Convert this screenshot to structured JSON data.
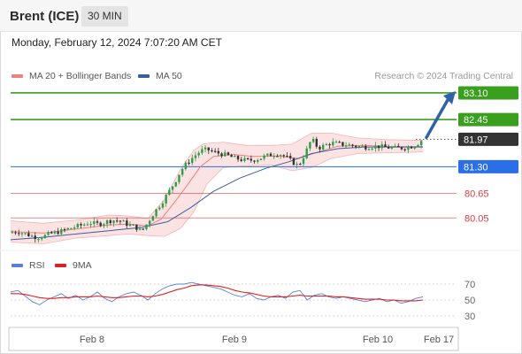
{
  "header": {
    "instrument": "Brent (ICE)",
    "timeframe": "30 MIN"
  },
  "datetime": "Monday, February 12, 2024 7:07:20 AM CET",
  "legend": {
    "bb": {
      "label": "MA 20 + Bollinger Bands",
      "color": "#f08080"
    },
    "ma50": {
      "label": "MA 50",
      "color": "#3a5f9a"
    },
    "rsi": {
      "label": "RSI",
      "color": "#5a7fd6"
    },
    "rsi_ma": {
      "label": "9MA",
      "color": "#e02020"
    }
  },
  "credit": "Research © 2024 Trading Central",
  "colors": {
    "up": "#2c9e4a",
    "down": "#333333",
    "bb_fill": "#fbe3e3",
    "forecast_arrow": "#2f62a8"
  },
  "chart_data": [
    {
      "type": "candlestick",
      "title": "",
      "x_ticks": [
        "Feb 8",
        "Feb 9",
        "Feb 10",
        "Feb 17"
      ],
      "ylim": [
        79.15,
        83.25
      ],
      "last_price": 81.97,
      "levels": [
        {
          "label": "83.10",
          "value": 83.1,
          "role": "resistance",
          "color": "#3a9e1e",
          "style": "tag"
        },
        {
          "label": "82.45",
          "value": 82.45,
          "role": "resistance",
          "color": "#3a9e1e",
          "style": "tag"
        },
        {
          "label": "81.97",
          "value": 81.97,
          "role": "last price",
          "color": "#333333",
          "style": "tag"
        },
        {
          "label": "81.30",
          "value": 81.3,
          "role": "pivot",
          "color": "#2a6ee8",
          "style": "tag"
        },
        {
          "label": "80.65",
          "value": 80.65,
          "role": "support",
          "color": "#e03c3c",
          "style": "text"
        },
        {
          "label": "80.05",
          "value": 80.05,
          "role": "support",
          "color": "#e03c3c",
          "style": "text"
        }
      ],
      "forecast": {
        "from": 81.97,
        "to": 83.1,
        "direction": "up"
      },
      "close_path": [
        [
          0,
          79.7
        ],
        [
          4,
          79.72
        ],
        [
          8,
          79.68
        ],
        [
          12,
          79.62
        ],
        [
          16,
          79.58
        ],
        [
          20,
          79.6
        ],
        [
          24,
          79.66
        ],
        [
          28,
          79.7
        ],
        [
          32,
          79.74
        ],
        [
          36,
          79.8
        ],
        [
          40,
          79.84
        ],
        [
          44,
          79.88
        ],
        [
          48,
          79.94
        ],
        [
          52,
          79.9
        ],
        [
          56,
          79.92
        ],
        [
          60,
          79.98
        ],
        [
          64,
          80.0
        ],
        [
          68,
          79.96
        ],
        [
          72,
          79.88
        ],
        [
          76,
          79.84
        ],
        [
          80,
          79.72
        ],
        [
          84,
          79.95
        ],
        [
          88,
          80.2
        ],
        [
          92,
          80.4
        ],
        [
          96,
          80.65
        ],
        [
          100,
          80.9
        ],
        [
          104,
          81.2
        ],
        [
          108,
          81.4
        ],
        [
          112,
          81.55
        ],
        [
          116,
          81.68
        ],
        [
          120,
          81.72
        ],
        [
          124,
          81.66
        ],
        [
          128,
          81.62
        ],
        [
          132,
          81.58
        ],
        [
          136,
          81.52
        ],
        [
          140,
          81.48
        ],
        [
          144,
          81.45
        ],
        [
          148,
          81.46
        ],
        [
          152,
          81.5
        ],
        [
          156,
          81.56
        ],
        [
          160,
          81.6
        ],
        [
          164,
          81.62
        ],
        [
          168,
          81.55
        ],
        [
          172,
          81.42
        ],
        [
          176,
          81.32
        ],
        [
          180,
          81.62
        ],
        [
          184,
          81.98
        ],
        [
          188,
          81.75
        ],
        [
          192,
          81.82
        ],
        [
          196,
          81.88
        ],
        [
          200,
          81.86
        ],
        [
          204,
          81.84
        ],
        [
          208,
          81.82
        ],
        [
          212,
          81.8
        ],
        [
          216,
          81.78
        ],
        [
          220,
          81.79
        ],
        [
          224,
          81.8
        ],
        [
          228,
          81.78
        ],
        [
          232,
          81.76
        ],
        [
          236,
          81.75
        ],
        [
          240,
          81.76
        ],
        [
          244,
          81.78
        ],
        [
          248,
          81.84
        ],
        [
          252,
          81.97
        ]
      ],
      "ma20": [
        [
          0,
          79.72
        ],
        [
          20,
          79.68
        ],
        [
          40,
          79.78
        ],
        [
          60,
          79.88
        ],
        [
          72,
          79.9
        ],
        [
          84,
          79.86
        ],
        [
          92,
          80.02
        ],
        [
          100,
          80.42
        ],
        [
          108,
          80.85
        ],
        [
          116,
          81.3
        ],
        [
          124,
          81.55
        ],
        [
          136,
          81.6
        ],
        [
          148,
          81.55
        ],
        [
          164,
          81.56
        ],
        [
          176,
          81.5
        ],
        [
          188,
          81.66
        ],
        [
          200,
          81.8
        ],
        [
          216,
          81.82
        ],
        [
          232,
          81.79
        ],
        [
          252,
          81.79
        ]
      ],
      "ma50": [
        [
          0,
          79.52
        ],
        [
          20,
          79.58
        ],
        [
          40,
          79.66
        ],
        [
          60,
          79.74
        ],
        [
          80,
          79.82
        ],
        [
          96,
          79.96
        ],
        [
          110,
          80.3
        ],
        [
          124,
          80.7
        ],
        [
          140,
          81.02
        ],
        [
          156,
          81.26
        ],
        [
          170,
          81.42
        ],
        [
          184,
          81.62
        ],
        [
          200,
          81.74
        ],
        [
          216,
          81.78
        ],
        [
          232,
          81.78
        ],
        [
          252,
          81.78
        ]
      ],
      "bb_upper": [
        [
          0,
          79.98
        ],
        [
          20,
          79.92
        ],
        [
          40,
          80.0
        ],
        [
          60,
          80.12
        ],
        [
          72,
          80.1
        ],
        [
          84,
          80.04
        ],
        [
          94,
          80.5
        ],
        [
          104,
          81.25
        ],
        [
          112,
          81.7
        ],
        [
          118,
          81.86
        ],
        [
          130,
          81.9
        ],
        [
          144,
          81.82
        ],
        [
          160,
          81.82
        ],
        [
          172,
          81.85
        ],
        [
          184,
          82.12
        ],
        [
          196,
          82.12
        ],
        [
          212,
          82.0
        ],
        [
          230,
          81.96
        ],
        [
          252,
          81.94
        ]
      ],
      "bb_lower": [
        [
          0,
          79.46
        ],
        [
          20,
          79.42
        ],
        [
          40,
          79.56
        ],
        [
          60,
          79.62
        ],
        [
          72,
          79.66
        ],
        [
          84,
          79.62
        ],
        [
          94,
          79.6
        ],
        [
          104,
          79.8
        ],
        [
          112,
          80.2
        ],
        [
          120,
          80.88
        ],
        [
          130,
          81.28
        ],
        [
          144,
          81.32
        ],
        [
          160,
          81.34
        ],
        [
          172,
          81.2
        ],
        [
          184,
          81.28
        ],
        [
          196,
          81.5
        ],
        [
          212,
          81.62
        ],
        [
          230,
          81.64
        ],
        [
          252,
          81.66
        ]
      ]
    },
    {
      "type": "line",
      "title": "RSI",
      "ylim": [
        20,
        80
      ],
      "y_ticks": [
        70,
        50,
        30
      ],
      "series": [
        {
          "name": "RSI",
          "color": "#5a7fd6",
          "values": [
            60,
            62,
            55,
            48,
            44,
            50,
            54,
            58,
            52,
            56,
            50,
            54,
            60,
            52,
            48,
            54,
            58,
            60,
            56,
            50,
            58,
            64,
            68,
            70,
            70,
            72,
            70,
            68,
            66,
            64,
            60,
            56,
            54,
            58,
            52,
            50,
            54,
            56,
            52,
            60,
            62,
            50,
            56,
            58,
            54,
            52,
            54,
            52,
            50,
            48,
            50,
            52,
            48,
            50,
            46,
            48,
            52,
            54
          ]
        },
        {
          "name": "9MA",
          "color": "#e02020",
          "values": [
            58,
            58,
            57,
            55,
            53,
            52,
            52,
            53,
            53,
            54,
            54,
            54,
            55,
            54,
            53,
            53,
            54,
            55,
            55,
            54,
            55,
            57,
            60,
            63,
            65,
            68,
            69,
            69,
            68,
            67,
            65,
            62,
            60,
            59,
            57,
            55,
            54,
            54,
            54,
            55,
            56,
            55,
            55,
            55,
            55,
            54,
            54,
            53,
            52,
            51,
            51,
            51,
            50,
            50,
            49,
            49,
            49,
            50
          ]
        }
      ]
    }
  ]
}
